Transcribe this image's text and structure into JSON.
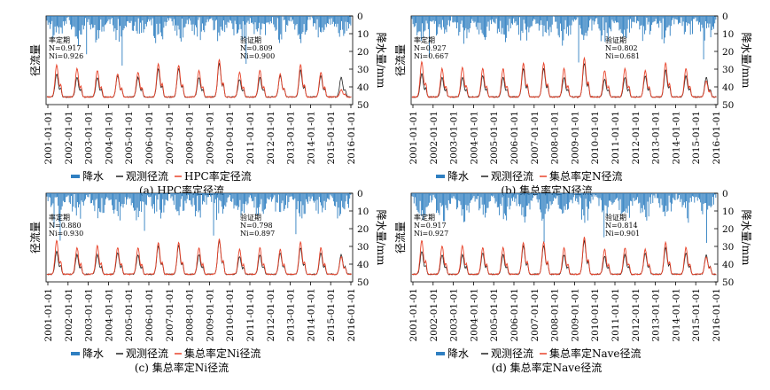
{
  "colors": {
    "precip": "#2f7fc1",
    "observed": "#222222",
    "simulated": "#e8432a"
  },
  "x_ticks": [
    "2001-01-01",
    "2002-01-01",
    "2003-01-01",
    "2004-01-01",
    "2005-01-01",
    "2006-01-01",
    "2007-01-01",
    "2008-01-01",
    "2009-01-01",
    "2010-01-01",
    "2011-01-01",
    "2012-01-01",
    "2013-01-01",
    "2014-01-01",
    "2015-01-01",
    "2016-01-01"
  ],
  "precip_ticks": [
    "0",
    "10",
    "20",
    "30",
    "40",
    "50"
  ],
  "legend": {
    "precip": "降水",
    "observed": "观测径流"
  },
  "panels": [
    {
      "ylabel": "径流量",
      "y2label": "降水量/mm",
      "calib": {
        "label": "率定期",
        "l1": "N=0.917",
        "l2": "Ni=0.926"
      },
      "valid": {
        "label": "验证期",
        "l1": "N=0.809",
        "l2": "Ni=0.900"
      },
      "sim_label": "HPC率定径流",
      "caption": "(a) HPC率定径流"
    },
    {
      "ylabel": "径流量",
      "y2label": "降水量/mm",
      "calib": {
        "label": "率定期",
        "l1": "N=0.927",
        "l2": "Ni=0.667"
      },
      "valid": {
        "label": "验证期",
        "l1": "N=0.802",
        "l2": "Ni=0.681"
      },
      "sim_label": "集总率定N径流",
      "caption": "(b) 集总率定N径流"
    },
    {
      "ylabel": "径流量",
      "y2label": "降水量/mm",
      "calib": {
        "label": "率定期",
        "l1": "N=0.880",
        "l2": "Ni=0.930"
      },
      "valid": {
        "label": "验证期",
        "l1": "N=0.798",
        "l2": "Ni=0.897"
      },
      "sim_label": "集总率定Ni径流",
      "caption": "(c) 集总率定Ni径流"
    },
    {
      "ylabel": "径流量",
      "y2label": "降水量/mm",
      "calib": {
        "label": "率定期",
        "l1": "N=0.917",
        "l2": "Ni=0.927"
      },
      "valid": {
        "label": "验证期",
        "l1": "N=0.814",
        "l2": "Ni=0.901"
      },
      "sim_label": "集总率定Nave径流",
      "caption": "(d) 集总率定Nave径流"
    }
  ],
  "chart_data": {
    "type": "line",
    "x_range": [
      "2001-01-01",
      "2016-01-01"
    ],
    "precip_ylim": [
      50,
      0
    ],
    "annual_runoff_peaks": {
      "a": {
        "observed": [
          33,
          35,
          35,
          34,
          35,
          30,
          30,
          35,
          27,
          36,
          35,
          34,
          31,
          34,
          35
        ],
        "simulated": [
          28,
          30,
          31,
          33,
          32,
          27,
          28,
          31,
          25,
          32,
          31,
          33,
          28,
          32,
          42
        ]
      },
      "b": {
        "observed": [
          33,
          35,
          35,
          34,
          35,
          30,
          30,
          35,
          27,
          36,
          35,
          34,
          31,
          34,
          35
        ],
        "simulated": [
          26,
          30,
          29,
          30,
          30,
          27,
          27,
          30,
          24,
          31,
          30,
          31,
          27,
          30,
          37
        ]
      },
      "c": {
        "observed": [
          33,
          35,
          35,
          34,
          35,
          30,
          30,
          35,
          27,
          36,
          35,
          34,
          31,
          34,
          35
        ],
        "simulated": [
          27,
          31,
          30,
          31,
          31,
          28,
          28,
          31,
          26,
          32,
          31,
          32,
          28,
          31,
          36
        ]
      },
      "d": {
        "observed": [
          33,
          35,
          35,
          34,
          35,
          30,
          30,
          35,
          27,
          36,
          35,
          34,
          31,
          34,
          35
        ],
        "simulated": [
          27,
          30,
          30,
          31,
          31,
          28,
          28,
          31,
          25,
          32,
          31,
          32,
          28,
          31,
          36
        ]
      }
    }
  }
}
